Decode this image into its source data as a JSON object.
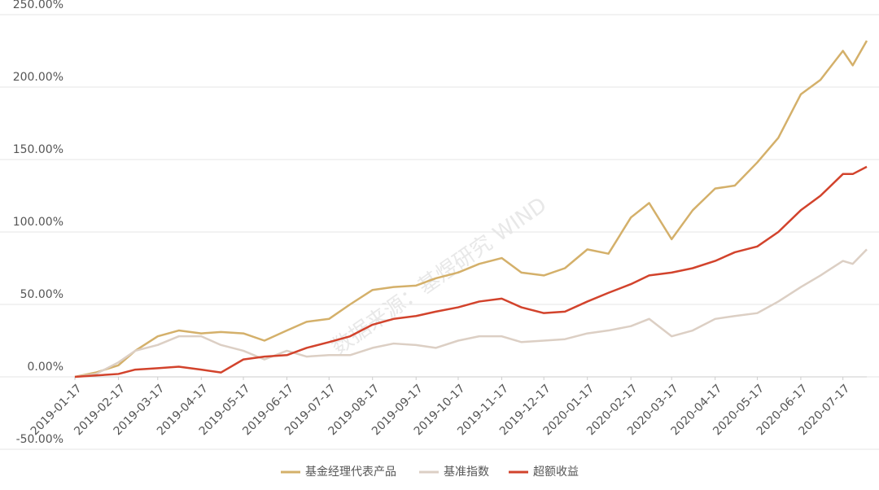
{
  "chart_data": {
    "type": "line",
    "watermark": "数据来源：基煜研究 WIND",
    "x": [
      "2019-01-17",
      "2019-02-01",
      "2019-02-17",
      "2019-03-01",
      "2019-03-17",
      "2019-04-01",
      "2019-04-17",
      "2019-05-01",
      "2019-05-17",
      "2019-06-01",
      "2019-06-17",
      "2019-07-01",
      "2019-07-17",
      "2019-08-01",
      "2019-08-17",
      "2019-09-01",
      "2019-09-17",
      "2019-10-01",
      "2019-10-17",
      "2019-11-01",
      "2019-11-17",
      "2019-12-01",
      "2019-12-17",
      "2020-01-01",
      "2020-01-17",
      "2020-02-01",
      "2020-02-17",
      "2020-03-01",
      "2020-03-17",
      "2020-04-01",
      "2020-04-17",
      "2020-05-01",
      "2020-05-17",
      "2020-06-01",
      "2020-06-17",
      "2020-07-01",
      "2020-07-17",
      "2020-07-24",
      "2020-08-03"
    ],
    "series": [
      {
        "name": "基金经理代表产品",
        "color": "#d4b06a",
        "values": [
          0,
          3,
          8,
          18,
          28,
          32,
          30,
          31,
          30,
          25,
          32,
          38,
          40,
          50,
          60,
          62,
          63,
          68,
          72,
          78,
          82,
          72,
          70,
          75,
          88,
          85,
          110,
          120,
          95,
          115,
          130,
          132,
          148,
          165,
          195,
          205,
          225,
          215,
          232
        ]
      },
      {
        "name": "基准指数",
        "color": "#dccfc4",
        "values": [
          0,
          2,
          10,
          18,
          22,
          28,
          28,
          22,
          18,
          12,
          18,
          14,
          15,
          15,
          20,
          23,
          22,
          20,
          25,
          28,
          28,
          24,
          25,
          26,
          30,
          32,
          35,
          40,
          28,
          32,
          40,
          42,
          44,
          52,
          62,
          70,
          80,
          78,
          88
        ]
      },
      {
        "name": "超额收益",
        "color": "#d2432c",
        "values": [
          0,
          1,
          2,
          5,
          6,
          7,
          5,
          3,
          12,
          14,
          15,
          20,
          24,
          28,
          36,
          40,
          42,
          45,
          48,
          52,
          54,
          48,
          44,
          45,
          52,
          58,
          64,
          70,
          72,
          75,
          80,
          86,
          90,
          100,
          115,
          125,
          140,
          140,
          145
        ]
      }
    ],
    "xlim": [
      "2019-01-17",
      "2020-08-03"
    ],
    "xticks": [
      "2019-01-17",
      "2019-02-17",
      "2019-03-17",
      "2019-04-17",
      "2019-05-17",
      "2019-06-17",
      "2019-07-17",
      "2019-08-17",
      "2019-09-17",
      "2019-10-17",
      "2019-11-17",
      "2019-12-17",
      "2020-01-17",
      "2020-02-17",
      "2020-03-17",
      "2020-04-17",
      "2020-05-17",
      "2020-06-17",
      "2020-07-17"
    ],
    "ylim": [
      -50,
      250
    ],
    "yticks": [
      {
        "value": -50,
        "label": "-50.00%"
      },
      {
        "value": 0,
        "label": "0.00%"
      },
      {
        "value": 50,
        "label": "50.00%"
      },
      {
        "value": 100,
        "label": "100.00%"
      },
      {
        "value": 150,
        "label": "150.00%"
      },
      {
        "value": 200,
        "label": "200.00%"
      },
      {
        "value": 250,
        "label": "250.00%"
      }
    ],
    "grid": true,
    "legend": "bottom"
  }
}
